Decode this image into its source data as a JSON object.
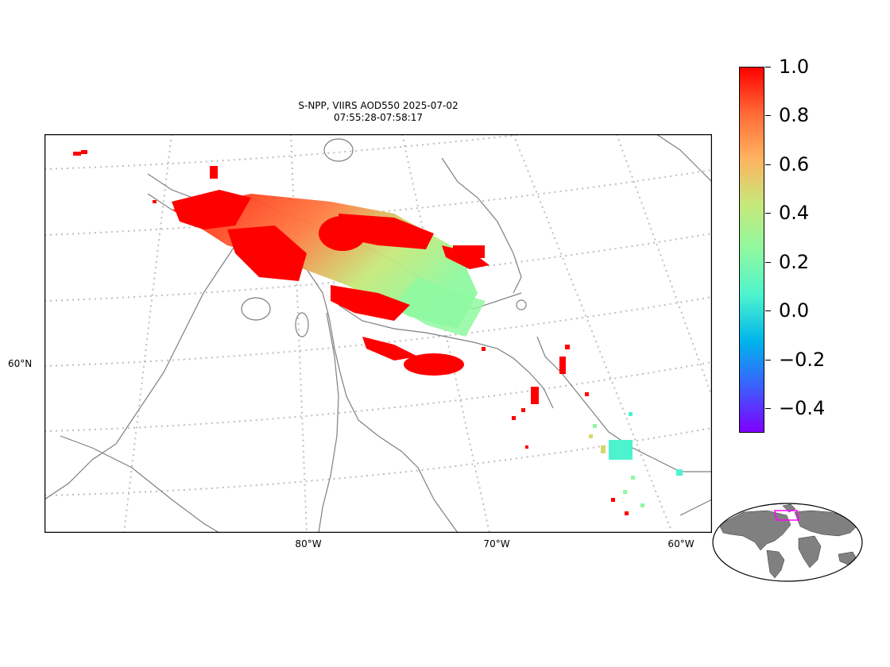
{
  "title": {
    "line1": "S-NPP, VIIRS AOD550 2025-07-02",
    "line2": "07:55:28-07:58:17"
  },
  "lat_labels": [
    "60°N"
  ],
  "lon_labels": [
    "80°W",
    "70°W",
    "60°W"
  ],
  "colorbar": {
    "colormap": "rainbow",
    "range": [
      -0.5,
      1.0
    ],
    "ticks": [
      {
        "value": 1.0,
        "label": "1.0"
      },
      {
        "value": 0.8,
        "label": "0.8"
      },
      {
        "value": 0.6,
        "label": "0.6"
      },
      {
        "value": 0.4,
        "label": "0.4"
      },
      {
        "value": 0.2,
        "label": "0.2"
      },
      {
        "value": 0.0,
        "label": "0.0"
      },
      {
        "value": -0.2,
        "label": "−0.2"
      },
      {
        "value": -0.4,
        "label": "−0.4"
      }
    ],
    "colors": [
      "#7f00ff",
      "#3b5ffc",
      "#00b5eb",
      "#4df3ce",
      "#8ef9a0",
      "#c7e87a",
      "#ffb360",
      "#ff6a36",
      "#ff0000"
    ]
  },
  "colors": {
    "coastline": "#7f7f7f",
    "gridline": "#bdbdbd",
    "inset_land": "#808080",
    "inset_box": "#ff00ff",
    "high_aod": "#ff0000"
  }
}
